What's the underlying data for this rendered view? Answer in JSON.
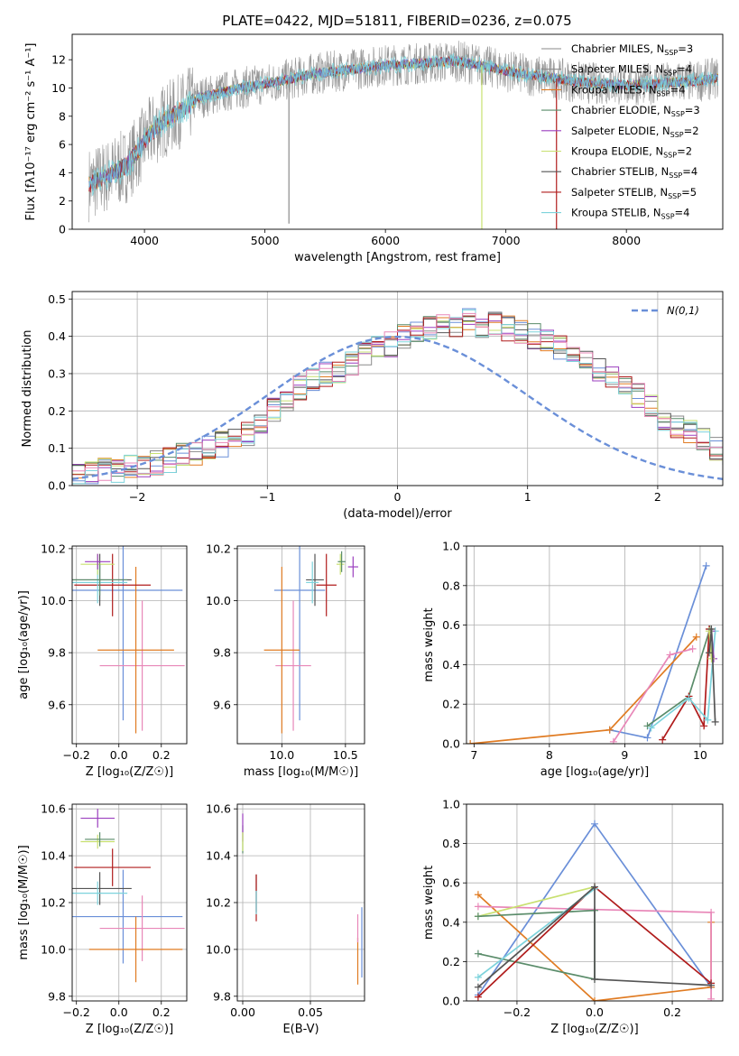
{
  "figure_title": "PLATE=0422, MJD=51811, FIBERID=0236, z=0.075",
  "colors": {
    "c_miles": "#6a8fd8",
    "s_miles": "#8a8a8a",
    "k_miles": "#e07b22",
    "c_elodie": "#5a8c6a",
    "s_elodie": "#9b3fbf",
    "k_elodie": "#c8e070",
    "c_stelib": "#555555",
    "s_stelib": "#b01c1c",
    "k_stelib": "#7dd3dc",
    "pink": "#e887b8",
    "grid": "#b0b0b0"
  },
  "chart_data": [
    {
      "id": "spectrum",
      "type": "line",
      "xlabel": "wavelength [Angstrom, rest frame]",
      "ylabel": "Flux [fλ10⁻¹⁷ erg cm⁻² s⁻¹ A⁻¹]",
      "xlim": [
        3400,
        8800
      ],
      "ylim": [
        0,
        13.8
      ],
      "xticks": [
        4000,
        5000,
        6000,
        7000,
        8000
      ],
      "yticks": [
        0,
        2,
        4,
        6,
        8,
        10,
        12
      ],
      "grid": false,
      "legend_position": "right",
      "legend": [
        "Chabrier MILES, N_SSP=3",
        "Salpeter MILES, N_SSP=4",
        "Kroupa MILES, N_SSP=4",
        "Chabrier ELODIE, N_SSP=3",
        "Salpeter ELODIE, N_SSP=2",
        "Kroupa ELODIE, N_SSP=2",
        "Chabrier STELIB, N_SSP=4",
        "Salpeter STELIB, N_SSP=5",
        "Kroupa STELIB, N_SSP=4"
      ],
      "legend_display": [
        [
          "Chabrier MILES, N",
          "SSP",
          "=3"
        ],
        [
          "Salpeter MILES, N",
          "SSP",
          "=4"
        ],
        [
          "Kroupa MILES, N",
          "SSP",
          "=4"
        ],
        [
          "Chabrier ELODIE, N",
          "SSP",
          "=3"
        ],
        [
          "Salpeter ELODIE, N",
          "SSP",
          "=2"
        ],
        [
          "Kroupa ELODIE, N",
          "SSP",
          "=2"
        ],
        [
          "Chabrier STELIB, N",
          "SSP",
          "=4"
        ],
        [
          "Salpeter STELIB, N",
          "SSP",
          "=5"
        ],
        [
          "Kroupa STELIB, N",
          "SSP",
          "=4"
        ]
      ],
      "continuum": {
        "x": [
          3550,
          3700,
          3850,
          3950,
          4050,
          4150,
          4300,
          4450,
          4600,
          4800,
          5000,
          5200,
          5400,
          5600,
          5800,
          6000,
          6200,
          6400,
          6600,
          6800,
          7000,
          7200,
          7400,
          7600,
          7800,
          8000,
          8200,
          8400,
          8600,
          8750
        ],
        "y": [
          3.2,
          3.8,
          4.5,
          5.6,
          6.8,
          7.6,
          8.4,
          9.3,
          9.6,
          10.0,
          10.3,
          10.6,
          11.0,
          11.2,
          11.4,
          11.6,
          11.7,
          11.8,
          11.9,
          11.6,
          11.2,
          10.9,
          10.7,
          10.4,
          10.3,
          10.2,
          10.3,
          10.4,
          10.5,
          10.7
        ]
      },
      "features": [
        {
          "x": 5199,
          "y": 0.4
        },
        {
          "x": 6800,
          "y": 0.0
        },
        {
          "x": 7420,
          "y": 0.0
        }
      ]
    },
    {
      "id": "residual-histogram",
      "type": "bar",
      "xlabel": "(data-model)/error",
      "ylabel": "Normed distribution",
      "xlim": [
        -2.5,
        2.5
      ],
      "ylim": [
        0,
        0.52
      ],
      "xticks": [
        -2,
        -1,
        0,
        1,
        2
      ],
      "yticks": [
        0.0,
        0.1,
        0.2,
        0.3,
        0.4,
        0.5
      ],
      "grid": true,
      "legend_position": "upper right",
      "legend": [
        "N(0,1)"
      ],
      "bins": {
        "start": -2.5,
        "width": 0.1
      },
      "histogram_values": [
        0.03,
        0.03,
        0.04,
        0.04,
        0.05,
        0.05,
        0.06,
        0.07,
        0.08,
        0.09,
        0.1,
        0.11,
        0.12,
        0.14,
        0.17,
        0.2,
        0.23,
        0.26,
        0.28,
        0.3,
        0.31,
        0.33,
        0.35,
        0.37,
        0.38,
        0.4,
        0.41,
        0.42,
        0.43,
        0.43,
        0.44,
        0.43,
        0.43,
        0.42,
        0.41,
        0.4,
        0.39,
        0.37,
        0.35,
        0.33,
        0.31,
        0.29,
        0.26,
        0.24,
        0.21,
        0.18,
        0.16,
        0.14,
        0.12,
        0.1,
        0.08
      ]
    },
    {
      "id": "age-vs-metallicity",
      "type": "scatter",
      "xlabel": "Z [log₁₀(Z/Z☉)]",
      "ylabel": "age  [log₁₀(age/yr)]",
      "xlim": [
        -0.22,
        0.32
      ],
      "ylim": [
        9.45,
        10.21
      ],
      "xticks": [
        -0.2,
        0.0,
        0.2
      ],
      "yticks": [
        9.6,
        9.8,
        10.0,
        10.2
      ],
      "grid": true,
      "points": [
        {
          "x": 0.02,
          "y": 10.04,
          "xerr": 0.28,
          "yerr": 0.5,
          "color": "c_miles"
        },
        {
          "x": 0.11,
          "y": 9.75,
          "xerr": 0.2,
          "yerr": 0.25,
          "color": "pink"
        },
        {
          "x": 0.08,
          "y": 9.81,
          "xerr": 0.18,
          "yerr": 0.32,
          "color": "k_miles"
        },
        {
          "x": -0.09,
          "y": 10.08,
          "xerr": 0.15,
          "yerr": 0.1,
          "color": "c_stelib"
        },
        {
          "x": -0.03,
          "y": 10.06,
          "xerr": 0.18,
          "yerr": 0.12,
          "color": "s_stelib"
        },
        {
          "x": -0.1,
          "y": 10.07,
          "xerr": 0.14,
          "yerr": 0.08,
          "color": "k_stelib"
        },
        {
          "x": -0.1,
          "y": 10.14,
          "xerr": 0.08,
          "yerr": 0.04,
          "color": "k_elodie"
        },
        {
          "x": -0.1,
          "y": 10.15,
          "xerr": 0.06,
          "yerr": 0.03,
          "color": "s_elodie"
        },
        {
          "x": -0.09,
          "y": 10.08,
          "xerr": 0.13,
          "yerr": 0.06,
          "color": "c_elodie"
        }
      ]
    },
    {
      "id": "age-vs-mass",
      "type": "scatter",
      "xlabel": "mass [log₁₀(M/M☉)]",
      "ylabel": "",
      "xlim": [
        9.65,
        10.65
      ],
      "ylim": [
        9.45,
        10.21
      ],
      "xticks": [
        10.0,
        10.5
      ],
      "yticks": [
        9.6,
        9.8,
        10.0,
        10.2
      ],
      "grid": true,
      "points": [
        {
          "x": 10.14,
          "y": 10.04,
          "xerr": 0.2,
          "yerr": 0.5,
          "color": "c_miles"
        },
        {
          "x": 10.09,
          "y": 9.75,
          "xerr": 0.14,
          "yerr": 0.25,
          "color": "pink"
        },
        {
          "x": 10.0,
          "y": 9.81,
          "xerr": 0.14,
          "yerr": 0.32,
          "color": "k_miles"
        },
        {
          "x": 10.26,
          "y": 10.08,
          "xerr": 0.07,
          "yerr": 0.1,
          "color": "c_stelib"
        },
        {
          "x": 10.35,
          "y": 10.06,
          "xerr": 0.08,
          "yerr": 0.12,
          "color": "s_stelib"
        },
        {
          "x": 10.24,
          "y": 10.07,
          "xerr": 0.05,
          "yerr": 0.08,
          "color": "k_stelib"
        },
        {
          "x": 10.46,
          "y": 10.14,
          "xerr": 0.03,
          "yerr": 0.04,
          "color": "k_elodie"
        },
        {
          "x": 10.56,
          "y": 10.13,
          "xerr": 0.04,
          "yerr": 0.04,
          "color": "s_elodie"
        },
        {
          "x": 10.47,
          "y": 10.15,
          "xerr": 0.03,
          "yerr": 0.04,
          "color": "c_elodie"
        }
      ]
    },
    {
      "id": "weight-vs-age",
      "type": "line",
      "xlabel": "age  [log₁₀(age/yr)]",
      "ylabel": "mass weight",
      "xlim": [
        6.9,
        10.3
      ],
      "ylim": [
        0,
        1.0
      ],
      "xticks": [
        7,
        8,
        9,
        10
      ],
      "yticks": [
        0.0,
        0.2,
        0.4,
        0.6,
        0.8,
        1.0
      ],
      "grid": true,
      "series": [
        {
          "color": "c_miles",
          "x": [
            8.8,
            9.3,
            10.08
          ],
          "y": [
            0.07,
            0.03,
            0.9
          ]
        },
        {
          "color": "k_miles",
          "x": [
            6.95,
            8.8,
            9.95
          ],
          "y": [
            0.0,
            0.07,
            0.54
          ]
        },
        {
          "color": "pink",
          "x": [
            8.85,
            9.6,
            9.9
          ],
          "y": [
            0.01,
            0.45,
            0.48
          ]
        },
        {
          "color": "c_elodie",
          "x": [
            9.3,
            9.85,
            10.13
          ],
          "y": [
            0.09,
            0.24,
            0.58
          ]
        },
        {
          "color": "s_stelib",
          "x": [
            9.5,
            9.85,
            10.05,
            10.12
          ],
          "y": [
            0.02,
            0.24,
            0.09,
            0.58
          ]
        },
        {
          "color": "k_stelib",
          "x": [
            9.35,
            9.85,
            10.1,
            10.2
          ],
          "y": [
            0.08,
            0.23,
            0.12,
            0.57
          ]
        },
        {
          "color": "s_elodie",
          "x": [
            10.15,
            10.18
          ],
          "y": [
            0.57,
            0.43
          ]
        },
        {
          "color": "k_elodie",
          "x": [
            10.12,
            10.15
          ],
          "y": [
            0.57,
            0.43
          ]
        },
        {
          "color": "c_stelib",
          "x": [
            10.12,
            10.15,
            10.2
          ],
          "y": [
            0.46,
            0.58,
            0.11
          ]
        }
      ]
    },
    {
      "id": "mass-vs-metallicity",
      "type": "scatter",
      "xlabel": "Z [log₁₀(Z/Z☉)]",
      "ylabel": "mass [log₁₀(M/M☉)]",
      "xlim": [
        -0.22,
        0.32
      ],
      "ylim": [
        9.78,
        10.62
      ],
      "xticks": [
        -0.2,
        0.0,
        0.2
      ],
      "yticks": [
        9.8,
        10.0,
        10.2,
        10.4,
        10.6
      ],
      "grid": true,
      "points": [
        {
          "x": 0.02,
          "y": 10.14,
          "xerr": 0.28,
          "yerr": 0.2,
          "color": "c_miles"
        },
        {
          "x": 0.11,
          "y": 10.09,
          "xerr": 0.2,
          "yerr": 0.14,
          "color": "pink"
        },
        {
          "x": 0.08,
          "y": 10.0,
          "xerr": 0.22,
          "yerr": 0.14,
          "color": "k_miles"
        },
        {
          "x": -0.09,
          "y": 10.26,
          "xerr": 0.15,
          "yerr": 0.07,
          "color": "c_stelib"
        },
        {
          "x": -0.03,
          "y": 10.35,
          "xerr": 0.18,
          "yerr": 0.08,
          "color": "s_stelib"
        },
        {
          "x": -0.1,
          "y": 10.24,
          "xerr": 0.14,
          "yerr": 0.05,
          "color": "k_stelib"
        },
        {
          "x": -0.1,
          "y": 10.46,
          "xerr": 0.08,
          "yerr": 0.03,
          "color": "k_elodie"
        },
        {
          "x": -0.1,
          "y": 10.56,
          "xerr": 0.08,
          "yerr": 0.04,
          "color": "s_elodie"
        },
        {
          "x": -0.09,
          "y": 10.47,
          "xerr": 0.07,
          "yerr": 0.03,
          "color": "c_elodie"
        }
      ]
    },
    {
      "id": "mass-vs-extinction",
      "type": "scatter",
      "xlabel": "E(B-V)",
      "ylabel": "",
      "xlim": [
        -0.004,
        0.09
      ],
      "ylim": [
        9.78,
        10.62
      ],
      "xticks": [
        0.0,
        0.05
      ],
      "yticks": [
        9.8,
        10.0,
        10.2,
        10.4,
        10.6
      ],
      "grid": true,
      "points": [
        {
          "x": 0.0,
          "y": 10.47,
          "xerr": 0.0,
          "yerr": 0.06,
          "color": "c_elodie"
        },
        {
          "x": 0.0,
          "y": 10.52,
          "xerr": 0.0,
          "yerr": 0.06,
          "color": "s_elodie"
        },
        {
          "x": 0.0,
          "y": 10.46,
          "xerr": 0.0,
          "yerr": 0.04,
          "color": "k_elodie"
        },
        {
          "x": 0.01,
          "y": 10.24,
          "xerr": 0.0,
          "yerr": 0.08,
          "color": "c_stelib"
        },
        {
          "x": 0.01,
          "y": 10.22,
          "xerr": 0.0,
          "yerr": 0.1,
          "color": "s_stelib"
        },
        {
          "x": 0.01,
          "y": 10.2,
          "xerr": 0.0,
          "yerr": 0.05,
          "color": "k_stelib"
        },
        {
          "x": 0.085,
          "y": 9.95,
          "xerr": 0.0,
          "yerr": 0.1,
          "color": "k_miles"
        },
        {
          "x": 0.085,
          "y": 10.09,
          "xerr": 0.0,
          "yerr": 0.06,
          "color": "pink"
        },
        {
          "x": 0.088,
          "y": 10.03,
          "xerr": 0.0,
          "yerr": 0.15,
          "color": "c_miles"
        }
      ]
    },
    {
      "id": "weight-vs-metallicity",
      "type": "line",
      "xlabel": "Z [log₁₀(Z/Z☉)]",
      "ylabel": "mass weight",
      "xlim": [
        -0.33,
        0.33
      ],
      "ylim": [
        0,
        1.0
      ],
      "xticks": [
        -0.2,
        0.0,
        0.2
      ],
      "yticks": [
        0.0,
        0.2,
        0.4,
        0.6,
        0.8,
        1.0
      ],
      "grid": true,
      "series": [
        {
          "color": "c_miles",
          "x": [
            -0.3,
            0.0,
            0.3
          ],
          "y": [
            0.03,
            0.9,
            0.07
          ]
        },
        {
          "color": "k_miles",
          "x": [
            -0.3,
            0.0,
            0.3,
            0.3
          ],
          "y": [
            0.54,
            0.0,
            0.07,
            0.4
          ]
        },
        {
          "color": "pink",
          "x": [
            -0.3,
            0.3,
            0.3
          ],
          "y": [
            0.48,
            0.45,
            0.01
          ]
        },
        {
          "color": "k_elodie",
          "x": [
            -0.3,
            0.0
          ],
          "y": [
            0.43,
            0.58
          ]
        },
        {
          "color": "c_elodie",
          "x": [
            -0.3,
            0.0,
            0.0,
            -0.3
          ],
          "y": [
            0.43,
            0.46,
            0.11,
            0.24
          ]
        },
        {
          "color": "s_stelib",
          "x": [
            -0.3,
            0.0,
            0.3
          ],
          "y": [
            0.02,
            0.58,
            0.09
          ]
        },
        {
          "color": "k_stelib",
          "x": [
            -0.3,
            0.0
          ],
          "y": [
            0.12,
            0.57
          ]
        },
        {
          "color": "c_stelib",
          "x": [
            -0.3,
            0.0,
            0.0,
            0.3
          ],
          "y": [
            0.07,
            0.58,
            0.11,
            0.08
          ]
        }
      ]
    }
  ]
}
